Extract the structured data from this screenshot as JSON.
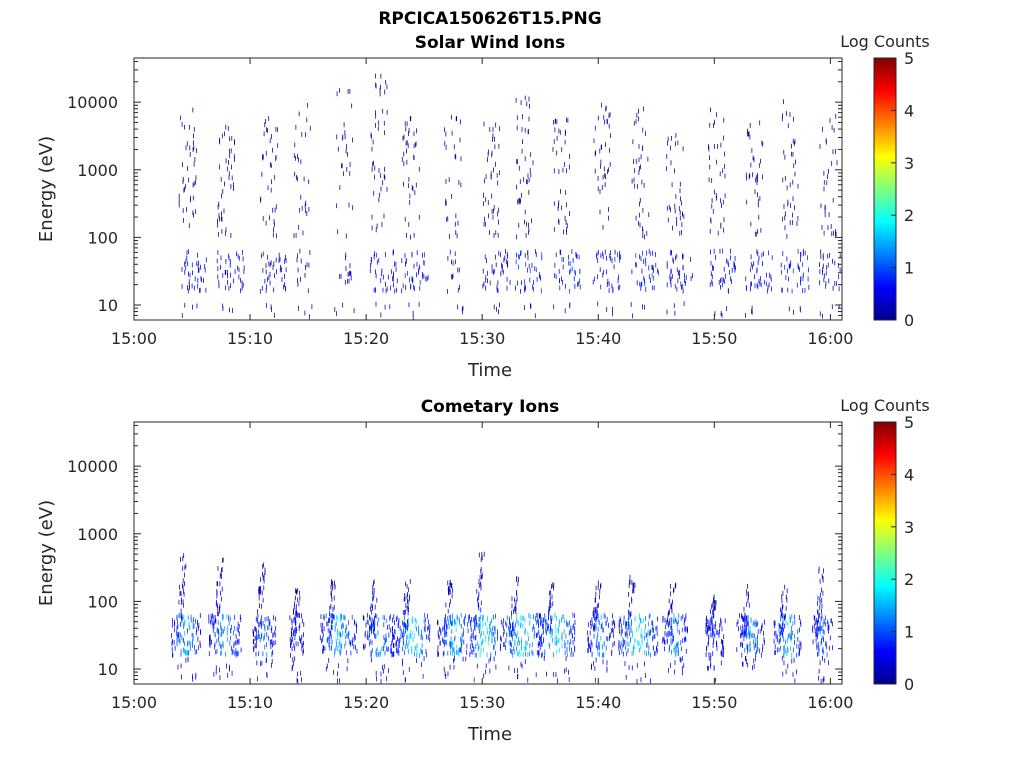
{
  "figure": {
    "filename": "RPCICA150626T15.PNG",
    "colorbar": {
      "label": "Log Counts",
      "ticks": [
        "0",
        "1",
        "2",
        "3",
        "4",
        "5"
      ],
      "range": [
        0,
        5
      ],
      "colormap": "jet"
    }
  },
  "chart_data": [
    {
      "type": "heatmap",
      "title": "Solar Wind Ions",
      "xlabel": "Time",
      "ylabel": "Energy (eV)",
      "x_ticks": [
        "15:00",
        "15:10",
        "15:20",
        "15:30",
        "15:40",
        "15:50",
        "16:00"
      ],
      "y_ticks": [
        "10",
        "100",
        "1000",
        "10000"
      ],
      "y_scale": "log",
      "x_range_min": [
        0,
        61
      ],
      "y_range_ev": [
        6,
        45000
      ],
      "z_range": [
        0,
        5
      ],
      "colorbar_label": "Log Counts",
      "bursts": [
        {
          "t": 4.3,
          "dense": true,
          "maxE": 7800,
          "count": 42,
          "lowz": 0.6
        },
        {
          "t": 7.6,
          "dense": true,
          "maxE": 6000,
          "count": 45,
          "lowz": 0.6
        },
        {
          "t": 11.3,
          "dense": true,
          "maxE": 6000,
          "count": 38,
          "lowz": 0.5
        },
        {
          "t": 14.2,
          "dense": false,
          "maxE": 11000,
          "count": 30,
          "lowz": 0.3
        },
        {
          "t": 17.8,
          "dense": false,
          "maxE": 20000,
          "count": 28,
          "lowz": 0.4
        },
        {
          "t": 20.8,
          "dense": true,
          "maxE": 30000,
          "count": 45,
          "lowz": 0.7
        },
        {
          "t": 23.5,
          "dense": true,
          "maxE": 6000,
          "count": 40,
          "lowz": 0.9
        },
        {
          "t": 27.1,
          "dense": false,
          "maxE": 7000,
          "count": 30,
          "lowz": 0.5
        },
        {
          "t": 30.5,
          "dense": true,
          "maxE": 5000,
          "count": 45,
          "lowz": 0.6
        },
        {
          "t": 33.3,
          "dense": true,
          "maxE": 12000,
          "count": 48,
          "lowz": 1.0
        },
        {
          "t": 36.5,
          "dense": true,
          "maxE": 6000,
          "count": 42,
          "lowz": 1.0
        },
        {
          "t": 40.0,
          "dense": true,
          "maxE": 10000,
          "count": 40,
          "lowz": 0.8
        },
        {
          "t": 43.3,
          "dense": true,
          "maxE": 9000,
          "count": 40,
          "lowz": 1.0
        },
        {
          "t": 46.3,
          "dense": true,
          "maxE": 3500,
          "count": 36,
          "lowz": 0.7
        },
        {
          "t": 49.9,
          "dense": true,
          "maxE": 10000,
          "count": 40,
          "lowz": 0.7
        },
        {
          "t": 53.1,
          "dense": true,
          "maxE": 5000,
          "count": 38,
          "lowz": 0.8
        },
        {
          "t": 56.2,
          "dense": true,
          "maxE": 11500,
          "count": 40,
          "lowz": 0.9
        },
        {
          "t": 59.5,
          "dense": true,
          "maxE": 9000,
          "count": 34,
          "lowz": 0.5
        }
      ]
    },
    {
      "type": "heatmap",
      "title": "Cometary Ions",
      "xlabel": "Time",
      "ylabel": "Energy (eV)",
      "x_ticks": [
        "15:00",
        "15:10",
        "15:20",
        "15:30",
        "15:40",
        "15:50",
        "16:00"
      ],
      "y_ticks": [
        "10",
        "100",
        "1000",
        "10000"
      ],
      "y_scale": "log",
      "x_range_min": [
        0,
        61
      ],
      "y_range_ev": [
        6,
        45000
      ],
      "z_range": [
        0,
        5
      ],
      "colorbar_label": "Log Counts",
      "bursts": [
        {
          "t": 4.5,
          "maxE": 480,
          "peakz": 1.9,
          "width": 1.3
        },
        {
          "t": 7.8,
          "maxE": 450,
          "peakz": 1.8,
          "width": 1.4
        },
        {
          "t": 11.2,
          "maxE": 380,
          "peakz": 1.5,
          "width": 1.0
        },
        {
          "t": 14.0,
          "maxE": 150,
          "peakz": 1.0,
          "width": 0.6
        },
        {
          "t": 17.6,
          "maxE": 200,
          "peakz": 1.9,
          "width": 1.6
        },
        {
          "t": 21.1,
          "maxE": 200,
          "peakz": 1.7,
          "width": 1.4
        },
        {
          "t": 24.0,
          "maxE": 250,
          "peakz": 2.2,
          "width": 1.5
        },
        {
          "t": 27.6,
          "maxE": 200,
          "peakz": 1.9,
          "width": 1.5
        },
        {
          "t": 30.2,
          "maxE": 500,
          "peakz": 2.3,
          "width": 1.4
        },
        {
          "t": 33.4,
          "maxE": 220,
          "peakz": 2.2,
          "width": 1.8
        },
        {
          "t": 36.4,
          "maxE": 200,
          "peakz": 2.3,
          "width": 1.6
        },
        {
          "t": 40.2,
          "maxE": 200,
          "peakz": 1.6,
          "width": 1.2
        },
        {
          "t": 43.4,
          "maxE": 250,
          "peakz": 2.3,
          "width": 1.7
        },
        {
          "t": 46.6,
          "maxE": 180,
          "peakz": 1.6,
          "width": 1.1
        },
        {
          "t": 50.0,
          "maxE": 120,
          "peakz": 1.0,
          "width": 0.9
        },
        {
          "t": 53.1,
          "maxE": 180,
          "peakz": 1.7,
          "width": 1.2
        },
        {
          "t": 56.3,
          "maxE": 180,
          "peakz": 1.9,
          "width": 1.2
        },
        {
          "t": 59.3,
          "maxE": 320,
          "peakz": 1.4,
          "width": 0.9
        }
      ]
    }
  ]
}
